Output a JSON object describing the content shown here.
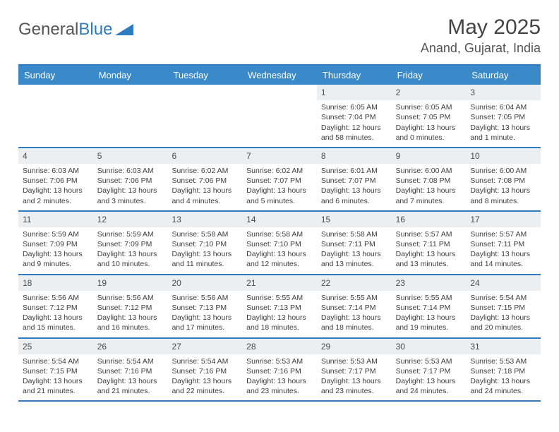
{
  "brand": {
    "part1": "General",
    "part2": "Blue"
  },
  "header": {
    "month": "May 2025",
    "location": "Anand, Gujarat, India"
  },
  "columns": [
    "Sunday",
    "Monday",
    "Tuesday",
    "Wednesday",
    "Thursday",
    "Friday",
    "Saturday"
  ],
  "colors": {
    "header_bg": "#3a8ac9",
    "header_text": "#ffffff",
    "border": "#2f7bbf",
    "daynum_bg": "#eceff1",
    "text": "#3d3d3d",
    "page_bg": "#ffffff"
  },
  "typography": {
    "month_fontsize": 30,
    "location_fontsize": 18,
    "header_fontsize": 13,
    "daynum_fontsize": 12,
    "body_fontsize": 10.5
  },
  "layout": {
    "columns_count": 7,
    "rows_count": 5,
    "first_weekday_index": 4
  },
  "days": [
    {
      "n": 1,
      "sunrise": "6:05 AM",
      "sunset": "7:04 PM",
      "daylight": "12 hours and 58 minutes."
    },
    {
      "n": 2,
      "sunrise": "6:05 AM",
      "sunset": "7:05 PM",
      "daylight": "13 hours and 0 minutes."
    },
    {
      "n": 3,
      "sunrise": "6:04 AM",
      "sunset": "7:05 PM",
      "daylight": "13 hours and 1 minute."
    },
    {
      "n": 4,
      "sunrise": "6:03 AM",
      "sunset": "7:06 PM",
      "daylight": "13 hours and 2 minutes."
    },
    {
      "n": 5,
      "sunrise": "6:03 AM",
      "sunset": "7:06 PM",
      "daylight": "13 hours and 3 minutes."
    },
    {
      "n": 6,
      "sunrise": "6:02 AM",
      "sunset": "7:06 PM",
      "daylight": "13 hours and 4 minutes."
    },
    {
      "n": 7,
      "sunrise": "6:02 AM",
      "sunset": "7:07 PM",
      "daylight": "13 hours and 5 minutes."
    },
    {
      "n": 8,
      "sunrise": "6:01 AM",
      "sunset": "7:07 PM",
      "daylight": "13 hours and 6 minutes."
    },
    {
      "n": 9,
      "sunrise": "6:00 AM",
      "sunset": "7:08 PM",
      "daylight": "13 hours and 7 minutes."
    },
    {
      "n": 10,
      "sunrise": "6:00 AM",
      "sunset": "7:08 PM",
      "daylight": "13 hours and 8 minutes."
    },
    {
      "n": 11,
      "sunrise": "5:59 AM",
      "sunset": "7:09 PM",
      "daylight": "13 hours and 9 minutes."
    },
    {
      "n": 12,
      "sunrise": "5:59 AM",
      "sunset": "7:09 PM",
      "daylight": "13 hours and 10 minutes."
    },
    {
      "n": 13,
      "sunrise": "5:58 AM",
      "sunset": "7:10 PM",
      "daylight": "13 hours and 11 minutes."
    },
    {
      "n": 14,
      "sunrise": "5:58 AM",
      "sunset": "7:10 PM",
      "daylight": "13 hours and 12 minutes."
    },
    {
      "n": 15,
      "sunrise": "5:58 AM",
      "sunset": "7:11 PM",
      "daylight": "13 hours and 13 minutes."
    },
    {
      "n": 16,
      "sunrise": "5:57 AM",
      "sunset": "7:11 PM",
      "daylight": "13 hours and 13 minutes."
    },
    {
      "n": 17,
      "sunrise": "5:57 AM",
      "sunset": "7:11 PM",
      "daylight": "13 hours and 14 minutes."
    },
    {
      "n": 18,
      "sunrise": "5:56 AM",
      "sunset": "7:12 PM",
      "daylight": "13 hours and 15 minutes."
    },
    {
      "n": 19,
      "sunrise": "5:56 AM",
      "sunset": "7:12 PM",
      "daylight": "13 hours and 16 minutes."
    },
    {
      "n": 20,
      "sunrise": "5:56 AM",
      "sunset": "7:13 PM",
      "daylight": "13 hours and 17 minutes."
    },
    {
      "n": 21,
      "sunrise": "5:55 AM",
      "sunset": "7:13 PM",
      "daylight": "13 hours and 18 minutes."
    },
    {
      "n": 22,
      "sunrise": "5:55 AM",
      "sunset": "7:14 PM",
      "daylight": "13 hours and 18 minutes."
    },
    {
      "n": 23,
      "sunrise": "5:55 AM",
      "sunset": "7:14 PM",
      "daylight": "13 hours and 19 minutes."
    },
    {
      "n": 24,
      "sunrise": "5:54 AM",
      "sunset": "7:15 PM",
      "daylight": "13 hours and 20 minutes."
    },
    {
      "n": 25,
      "sunrise": "5:54 AM",
      "sunset": "7:15 PM",
      "daylight": "13 hours and 21 minutes."
    },
    {
      "n": 26,
      "sunrise": "5:54 AM",
      "sunset": "7:16 PM",
      "daylight": "13 hours and 21 minutes."
    },
    {
      "n": 27,
      "sunrise": "5:54 AM",
      "sunset": "7:16 PM",
      "daylight": "13 hours and 22 minutes."
    },
    {
      "n": 28,
      "sunrise": "5:53 AM",
      "sunset": "7:16 PM",
      "daylight": "13 hours and 23 minutes."
    },
    {
      "n": 29,
      "sunrise": "5:53 AM",
      "sunset": "7:17 PM",
      "daylight": "13 hours and 23 minutes."
    },
    {
      "n": 30,
      "sunrise": "5:53 AM",
      "sunset": "7:17 PM",
      "daylight": "13 hours and 24 minutes."
    },
    {
      "n": 31,
      "sunrise": "5:53 AM",
      "sunset": "7:18 PM",
      "daylight": "13 hours and 24 minutes."
    }
  ],
  "labels": {
    "sunrise": "Sunrise: ",
    "sunset": "Sunset: ",
    "daylight": "Daylight: "
  }
}
